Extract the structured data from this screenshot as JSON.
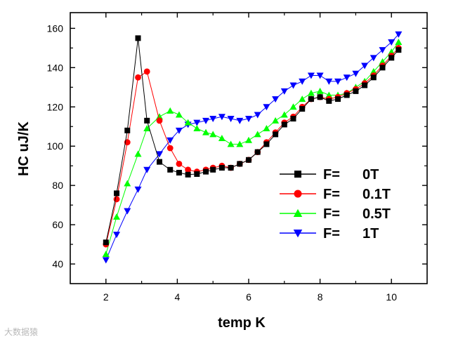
{
  "chart_data": {
    "type": "line",
    "title": "",
    "xlabel": "temp  K",
    "ylabel": "HC  uJ/K",
    "xlim": [
      1.0,
      11.0
    ],
    "ylim": [
      30,
      168
    ],
    "xticks": [
      2,
      4,
      6,
      8,
      10
    ],
    "yticks": [
      40,
      60,
      80,
      100,
      120,
      140,
      160
    ],
    "grid": false,
    "legend_position": "center-right",
    "series": [
      {
        "name": "F =   0T",
        "legend_parts": [
          "F=",
          "0T"
        ],
        "marker": "square",
        "color": "#000000",
        "x": [
          2.0,
          2.3,
          2.6,
          2.9,
          3.15,
          3.5,
          3.8,
          4.05,
          4.3,
          4.55,
          4.8,
          5.0,
          5.25,
          5.5,
          5.75,
          6.0,
          6.25,
          6.5,
          6.75,
          7.0,
          7.25,
          7.5,
          7.75,
          8.0,
          8.25,
          8.5,
          8.75,
          9.0,
          9.25,
          9.5,
          9.75,
          10.0,
          10.2
        ],
        "y": [
          51,
          76,
          108,
          155,
          113,
          92,
          88,
          86.5,
          85.5,
          85.8,
          87,
          88,
          89,
          89,
          91,
          93,
          97,
          101,
          106,
          111,
          114,
          119,
          124,
          125,
          123,
          124,
          126,
          128,
          131,
          135,
          140,
          145,
          149
        ]
      },
      {
        "name": "F =   0.1T",
        "legend_parts": [
          "F=",
          "0.1T"
        ],
        "marker": "circle",
        "color": "#ff0000",
        "x": [
          2.0,
          2.3,
          2.6,
          2.9,
          3.15,
          3.5,
          3.8,
          4.05,
          4.3,
          4.55,
          4.8,
          5.0,
          5.25,
          5.5,
          5.75,
          6.0,
          6.25,
          6.5,
          6.75,
          7.0,
          7.25,
          7.5,
          7.75,
          8.0,
          8.25,
          8.5,
          8.75,
          9.0,
          9.25,
          9.5,
          9.75,
          10.0,
          10.2
        ],
        "y": [
          50,
          73,
          102,
          135,
          138,
          113,
          99,
          91,
          88,
          87,
          88,
          89,
          90,
          89,
          91,
          93,
          97,
          102,
          107,
          112,
          115,
          120,
          124,
          125,
          124,
          125,
          127,
          129,
          132,
          136,
          141,
          146,
          150
        ]
      },
      {
        "name": "F =   0.5T",
        "legend_parts": [
          "F=",
          "0.5T"
        ],
        "marker": "triangle-up",
        "color": "#00ff00",
        "x": [
          2.0,
          2.3,
          2.6,
          2.9,
          3.15,
          3.5,
          3.8,
          4.05,
          4.3,
          4.55,
          4.8,
          5.0,
          5.25,
          5.5,
          5.75,
          6.0,
          6.25,
          6.5,
          6.75,
          7.0,
          7.25,
          7.5,
          7.75,
          8.0,
          8.25,
          8.5,
          8.75,
          9.0,
          9.25,
          9.5,
          9.75,
          10.0,
          10.2
        ],
        "y": [
          45,
          64,
          81,
          96,
          109,
          115,
          118,
          116,
          112,
          109,
          107,
          106,
          104,
          101,
          101,
          103,
          106,
          109,
          113,
          116,
          120,
          124,
          127,
          128,
          126,
          126,
          127,
          130,
          133,
          138,
          143,
          148,
          153
        ]
      },
      {
        "name": "F =   1T",
        "legend_parts": [
          "F=",
          "1T"
        ],
        "marker": "triangle-down",
        "color": "#0000ff",
        "x": [
          2.0,
          2.3,
          2.6,
          2.9,
          3.15,
          3.5,
          3.8,
          4.05,
          4.3,
          4.55,
          4.8,
          5.0,
          5.25,
          5.5,
          5.75,
          6.0,
          6.25,
          6.5,
          6.75,
          7.0,
          7.25,
          7.5,
          7.75,
          8.0,
          8.25,
          8.5,
          8.75,
          9.0,
          9.25,
          9.5,
          9.75,
          10.0,
          10.2
        ],
        "y": [
          42,
          55,
          67,
          78,
          88,
          96,
          103,
          108,
          111,
          112,
          113,
          114,
          115,
          114,
          113,
          114,
          116,
          120,
          124,
          128,
          131,
          133,
          136,
          136,
          133,
          133,
          135,
          137,
          141,
          145,
          149,
          153,
          157
        ]
      }
    ]
  },
  "watermark": "大数据猿"
}
